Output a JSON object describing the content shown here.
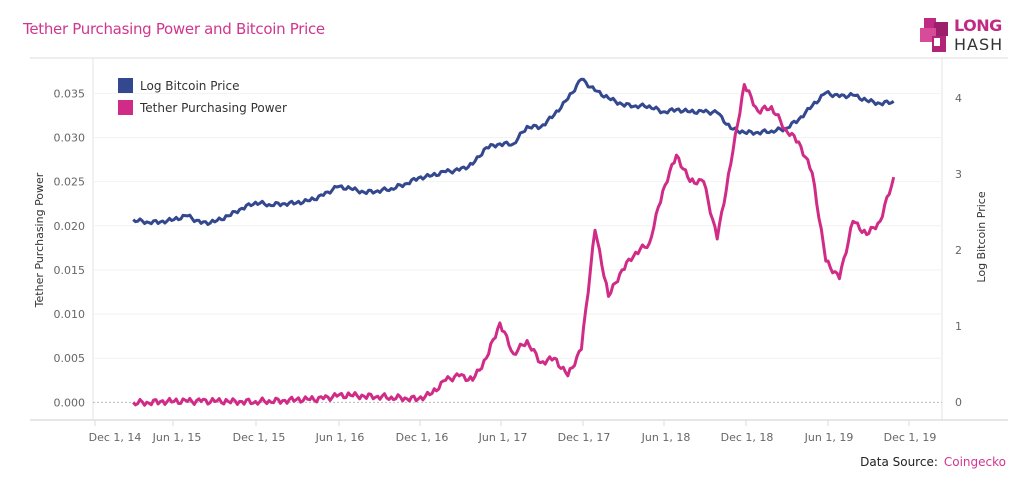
{
  "header": {
    "title": "Tether Purchasing Power and Bitcoin Price",
    "logo_text": [
      "LONG",
      "HASH"
    ]
  },
  "footer": {
    "source_label": "Data Source:",
    "source_value": "Coingecko"
  },
  "colors": {
    "bitcoin": "#34488f",
    "tether": "#d02c87",
    "title": "#d1368f"
  },
  "chart_data": {
    "type": "line",
    "title": "Tether Purchasing Power and Bitcoin Price",
    "y_left_label": "Tether Purchasing Power",
    "y_right_label": "Log Bitcoin Price",
    "y_left_ticks": [
      "0.000",
      "0.005",
      "0.010",
      "0.015",
      "0.020",
      "0.025",
      "0.030",
      "0.035"
    ],
    "y_left_tick_values": [
      0,
      0.005,
      0.01,
      0.015,
      0.02,
      0.025,
      0.03,
      0.035
    ],
    "y_right_ticks": [
      "0",
      "1",
      "2",
      "3",
      "4"
    ],
    "y_right_tick_values": [
      0,
      1,
      2,
      3,
      4
    ],
    "ylim_left": [
      -0.002,
      0.039
    ],
    "ylim_right": [
      -0.24,
      4.53
    ],
    "x_ticks": [
      "Dec 1, 14",
      "Jun 1, 15",
      "Dec 1, 15",
      "Jun 1, 16",
      "Dec 1, 16",
      "Jun 1, 17",
      "Dec 1, 17",
      "Jun 1, 18",
      "Dec 1, 18",
      "Jun 1, 19",
      "Dec 1, 19"
    ],
    "legend": [
      "Log Bitcoin Price",
      "Tether Purchasing Power"
    ],
    "legend_position": "top-left",
    "x": [
      "2015-03",
      "2015-04",
      "2015-05",
      "2015-06",
      "2015-07",
      "2015-08",
      "2015-09",
      "2015-10",
      "2015-11",
      "2015-12",
      "2016-01",
      "2016-02",
      "2016-03",
      "2016-04",
      "2016-05",
      "2016-06",
      "2016-07",
      "2016-08",
      "2016-09",
      "2016-10",
      "2016-11",
      "2016-12",
      "2017-01",
      "2017-02",
      "2017-03",
      "2017-04",
      "2017-05",
      "2017-06",
      "2017-07",
      "2017-08",
      "2017-09",
      "2017-10",
      "2017-11",
      "2017-12",
      "2018-01",
      "2018-02",
      "2018-03",
      "2018-04",
      "2018-05",
      "2018-06",
      "2018-07",
      "2018-08",
      "2018-09",
      "2018-10",
      "2018-11",
      "2018-12",
      "2019-01",
      "2019-02",
      "2019-03",
      "2019-04",
      "2019-05",
      "2019-06",
      "2019-07",
      "2019-08",
      "2019-09",
      "2019-10",
      "2019-11"
    ],
    "series": [
      {
        "name": "Log Bitcoin Price",
        "axis": "right",
        "values": [
          2.4,
          2.37,
          2.37,
          2.4,
          2.45,
          2.35,
          2.37,
          2.45,
          2.55,
          2.63,
          2.6,
          2.61,
          2.62,
          2.65,
          2.72,
          2.83,
          2.81,
          2.76,
          2.78,
          2.81,
          2.87,
          2.95,
          2.98,
          3.03,
          3.05,
          3.13,
          3.35,
          3.4,
          3.4,
          3.63,
          3.62,
          3.78,
          3.99,
          4.25,
          4.1,
          4.0,
          3.92,
          3.9,
          3.9,
          3.82,
          3.85,
          3.82,
          3.82,
          3.81,
          3.6,
          3.55,
          3.55,
          3.57,
          3.6,
          3.72,
          3.9,
          4.07,
          4.02,
          4.04,
          3.97,
          3.93,
          3.96
        ]
      },
      {
        "name": "Tether Purchasing Power",
        "axis": "left",
        "values": [
          0.0,
          0.0,
          0.0001,
          0.0001,
          0.0001,
          0.0001,
          0.0001,
          0.0001,
          0.0001,
          0.0001,
          0.0002,
          0.0002,
          0.0003,
          0.0003,
          0.0004,
          0.0007,
          0.0008,
          0.0007,
          0.0007,
          0.0006,
          0.0005,
          0.0004,
          0.001,
          0.0025,
          0.003,
          0.0025,
          0.005,
          0.009,
          0.0055,
          0.007,
          0.0045,
          0.005,
          0.003,
          0.006,
          0.0195,
          0.012,
          0.015,
          0.017,
          0.018,
          0.024,
          0.028,
          0.025,
          0.025,
          0.0185,
          0.027,
          0.036,
          0.033,
          0.0335,
          0.031,
          0.0295,
          0.026,
          0.016,
          0.014,
          0.0205,
          0.019,
          0.0205,
          0.0255
        ]
      }
    ]
  }
}
